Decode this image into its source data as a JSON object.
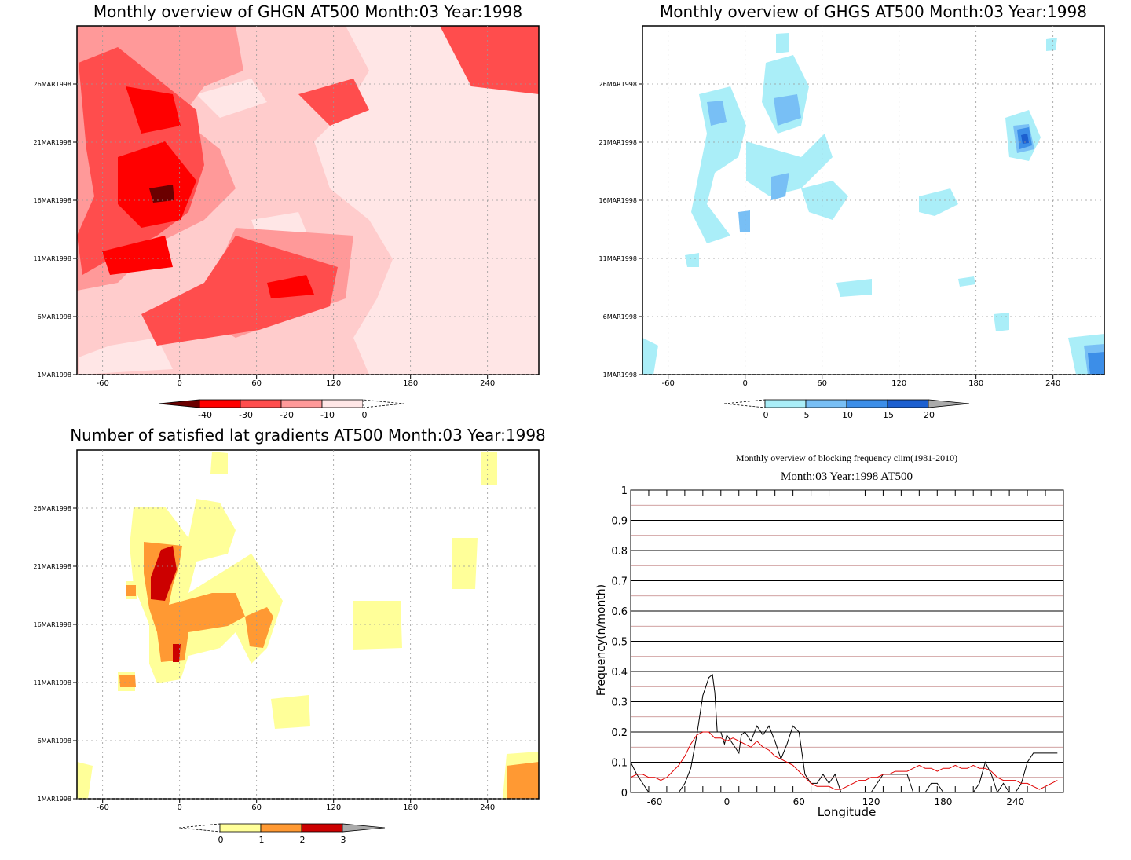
{
  "chart_data": [
    {
      "type": "heatmap",
      "title": "Monthly overview of GHGN AT500 Month:03 Year:1998",
      "x_ticks": [
        "-60",
        "0",
        "60",
        "120",
        "180",
        "240"
      ],
      "x_tick_values": [
        -60,
        0,
        60,
        120,
        180,
        240
      ],
      "xlim": [
        -80,
        280
      ],
      "y_ticks": [
        "1MAR1998",
        "6MAR1998",
        "11MAR1998",
        "16MAR1998",
        "21MAR1998",
        "26MAR1998"
      ],
      "y_tick_values": [
        1,
        6,
        11,
        16,
        21,
        26
      ],
      "ylim": [
        1,
        31
      ],
      "grid": true,
      "colorbar": {
        "labels": [
          "-40",
          "-30",
          "-20",
          "-10",
          "0"
        ],
        "colors": [
          "#6b0000",
          "#ff0000",
          "#ff4d4d",
          "#ff9999",
          "#ffe6e6"
        ]
      },
      "background": "#ffcccc"
    },
    {
      "type": "heatmap",
      "title": "Monthly overview of GHGS AT500 Month:03 Year:1998",
      "x_ticks": [
        "-60",
        "0",
        "60",
        "120",
        "180",
        "240"
      ],
      "x_tick_values": [
        -60,
        0,
        60,
        120,
        180,
        240
      ],
      "xlim": [
        -80,
        280
      ],
      "y_ticks": [
        "1MAR1998",
        "6MAR1998",
        "11MAR1998",
        "16MAR1998",
        "21MAR1998",
        "26MAR1998"
      ],
      "y_tick_values": [
        1,
        6,
        11,
        16,
        21,
        26
      ],
      "ylim": [
        1,
        31
      ],
      "grid": true,
      "colorbar": {
        "labels": [
          "0",
          "5",
          "10",
          "15",
          "20"
        ],
        "colors": [
          "#aaeef8",
          "#78bff5",
          "#3c8ee8",
          "#1c5fcf",
          "#aaaaaa"
        ]
      },
      "background": "#ffffff"
    },
    {
      "type": "heatmap",
      "title": "Number of satisfied lat gradients AT500 Month:03 Year:1998",
      "x_ticks": [
        "-60",
        "0",
        "60",
        "120",
        "180",
        "240"
      ],
      "x_tick_values": [
        -60,
        0,
        60,
        120,
        180,
        240
      ],
      "xlim": [
        -80,
        280
      ],
      "y_ticks": [
        "1MAR1998",
        "6MAR1998",
        "11MAR1998",
        "16MAR1998",
        "21MAR1998",
        "26MAR1998"
      ],
      "y_tick_values": [
        1,
        6,
        11,
        16,
        21,
        26
      ],
      "ylim": [
        1,
        31
      ],
      "grid": true,
      "colorbar": {
        "labels": [
          "0",
          "1",
          "2",
          "3"
        ],
        "colors": [
          "#ffff99",
          "#ff9933",
          "#cc0000",
          "#aaaaaa"
        ]
      },
      "background": "#ffffff"
    },
    {
      "type": "line",
      "title": "Monthly overview of blocking frequency clim(1981-2010)",
      "subtitle": "Month:03 Year:1998  AT500",
      "xlabel": "Longitude",
      "ylabel": "Frequency(n/month)",
      "xlim": [
        -80,
        280
      ],
      "ylim": [
        0,
        1
      ],
      "x_ticks": [
        "-60",
        "0",
        "60",
        "120",
        "180",
        "240"
      ],
      "x_tick_values": [
        -60,
        0,
        60,
        120,
        180,
        240
      ],
      "y_ticks": [
        "0",
        "0.1",
        "0.2",
        "0.3",
        "0.4",
        "0.5",
        "0.6",
        "0.7",
        "0.8",
        "0.9",
        "1"
      ],
      "y_tick_values": [
        0,
        0.1,
        0.2,
        0.3,
        0.4,
        0.5,
        0.6,
        0.7,
        0.8,
        0.9,
        1
      ],
      "grid": true,
      "series": [
        {
          "color": "#000000",
          "x": [
            -80,
            -75,
            -70,
            -65,
            -60,
            -55,
            -50,
            -45,
            -40,
            -35,
            -30,
            -25,
            -20,
            -15,
            -12,
            -10,
            -8,
            -5,
            -2,
            0,
            5,
            10,
            12,
            15,
            20,
            25,
            30,
            35,
            40,
            45,
            50,
            55,
            60,
            65,
            70,
            75,
            80,
            85,
            90,
            95,
            100,
            105,
            110,
            115,
            120,
            125,
            130,
            135,
            140,
            145,
            150,
            155,
            160,
            165,
            170,
            175,
            180,
            185,
            190,
            195,
            200,
            205,
            210,
            215,
            220,
            225,
            230,
            235,
            240,
            245,
            250,
            255,
            260,
            265,
            270,
            275
          ],
          "y": [
            0.1,
            0.06,
            0.03,
            0.0,
            0.0,
            0.0,
            0.0,
            0.0,
            0.0,
            0.03,
            0.08,
            0.19,
            0.32,
            0.38,
            0.39,
            0.33,
            0.2,
            0.2,
            0.16,
            0.19,
            0.16,
            0.13,
            0.19,
            0.2,
            0.17,
            0.22,
            0.19,
            0.22,
            0.17,
            0.11,
            0.16,
            0.22,
            0.2,
            0.06,
            0.03,
            0.03,
            0.06,
            0.03,
            0.06,
            0.0,
            0.0,
            0.0,
            0.0,
            0.0,
            0.0,
            0.03,
            0.06,
            0.06,
            0.06,
            0.06,
            0.06,
            0.0,
            0.0,
            0.0,
            0.03,
            0.03,
            0.0,
            0.0,
            0.0,
            0.0,
            0.0,
            0.0,
            0.03,
            0.1,
            0.06,
            0.0,
            0.03,
            0.0,
            0.0,
            0.03,
            0.1,
            0.13,
            0.13,
            0.13,
            0.13,
            0.13
          ]
        },
        {
          "color": "#e00000",
          "x": [
            -80,
            -75,
            -70,
            -65,
            -60,
            -55,
            -50,
            -45,
            -40,
            -35,
            -30,
            -25,
            -20,
            -15,
            -10,
            -5,
            0,
            5,
            10,
            15,
            20,
            25,
            30,
            35,
            40,
            45,
            50,
            55,
            60,
            65,
            70,
            75,
            80,
            85,
            90,
            95,
            100,
            105,
            110,
            115,
            120,
            125,
            130,
            135,
            140,
            145,
            150,
            155,
            160,
            165,
            170,
            175,
            180,
            185,
            190,
            195,
            200,
            205,
            210,
            215,
            220,
            225,
            230,
            235,
            240,
            245,
            250,
            255,
            260,
            265,
            270,
            275
          ],
          "y": [
            0.05,
            0.06,
            0.06,
            0.05,
            0.05,
            0.04,
            0.05,
            0.07,
            0.09,
            0.12,
            0.16,
            0.19,
            0.2,
            0.2,
            0.18,
            0.18,
            0.17,
            0.18,
            0.17,
            0.16,
            0.15,
            0.17,
            0.15,
            0.14,
            0.12,
            0.11,
            0.1,
            0.09,
            0.07,
            0.05,
            0.03,
            0.02,
            0.02,
            0.02,
            0.01,
            0.01,
            0.02,
            0.03,
            0.04,
            0.04,
            0.05,
            0.05,
            0.06,
            0.06,
            0.07,
            0.07,
            0.07,
            0.08,
            0.09,
            0.08,
            0.08,
            0.07,
            0.08,
            0.08,
            0.09,
            0.08,
            0.08,
            0.09,
            0.08,
            0.08,
            0.07,
            0.05,
            0.04,
            0.04,
            0.04,
            0.03,
            0.03,
            0.02,
            0.01,
            0.02,
            0.03,
            0.04
          ]
        }
      ]
    }
  ]
}
